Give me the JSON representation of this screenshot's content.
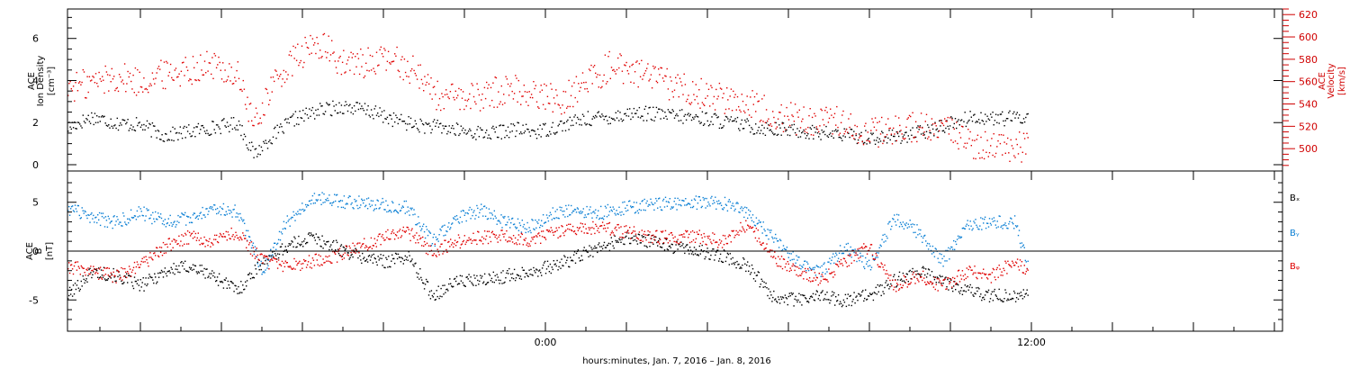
{
  "xlabel": "hours:minutes, Jan.  7, 2016 – Jan.  8, 2016",
  "x_ticks": [
    {
      "hours": 0,
      "label": "0:00"
    },
    {
      "hours": 12,
      "label": "12:00"
    }
  ],
  "chart_data": [
    {
      "type": "scatter",
      "panel": "top",
      "x_unit": "hours relative to Jan. 8, 2016 0:00",
      "xlim": [
        -11.8,
        18.2
      ],
      "left_axis": {
        "label": [
          "ACE",
          "Ion Density"
        ],
        "unit": "[cm⁻³]",
        "ylim": [
          -0.3,
          7.4
        ],
        "ticks": [
          0,
          2,
          4,
          6
        ]
      },
      "right_axis": {
        "label": [
          "ACE",
          "Velocity"
        ],
        "unit": "[km/s]",
        "ylim": [
          480,
          625
        ],
        "ticks": [
          500,
          520,
          540,
          560,
          580,
          600,
          620
        ]
      },
      "series": [
        {
          "axis": "left",
          "color": "#000000",
          "x": [
            -11.8,
            -11.2,
            -10.6,
            -10.0,
            -9.4,
            -8.8,
            -8.2,
            -7.6,
            -7.2,
            -6.8,
            -6.2,
            -5.6,
            -5.0,
            -4.4,
            -3.8,
            -3.2,
            -2.6,
            -2.0,
            -1.4,
            -0.8,
            -0.2,
            0.4,
            1.0,
            1.6,
            2.2,
            2.8,
            3.4,
            4.0,
            4.6,
            5.2,
            5.8,
            6.4,
            7.0,
            7.6,
            8.2,
            8.8,
            9.4,
            10.0,
            10.6,
            11.2,
            11.9
          ],
          "values": [
            1.8,
            2.3,
            2.0,
            1.9,
            1.4,
            1.6,
            1.8,
            2.0,
            0.5,
            1.3,
            2.2,
            2.6,
            2.8,
            2.6,
            2.2,
            1.9,
            1.8,
            1.6,
            1.5,
            1.7,
            1.6,
            1.9,
            2.2,
            2.3,
            2.5,
            2.4,
            2.3,
            2.2,
            2.0,
            1.8,
            1.7,
            1.6,
            1.5,
            1.4,
            1.3,
            1.4,
            1.6,
            2.0,
            2.3,
            2.2,
            2.3
          ]
        },
        {
          "axis": "right",
          "color": "#e00000",
          "x": [
            -11.8,
            -11.2,
            -10.6,
            -10.0,
            -9.4,
            -8.8,
            -8.2,
            -7.6,
            -7.2,
            -6.8,
            -6.2,
            -5.6,
            -5.0,
            -4.4,
            -3.8,
            -3.2,
            -2.6,
            -2.0,
            -1.4,
            -0.8,
            -0.2,
            0.4,
            1.0,
            1.6,
            2.2,
            2.8,
            3.4,
            4.0,
            4.6,
            5.2,
            5.8,
            6.4,
            7.0,
            7.6,
            8.2,
            8.8,
            9.4,
            10.0,
            10.6,
            11.2,
            11.9
          ],
          "values": [
            555,
            560,
            565,
            560,
            568,
            572,
            575,
            565,
            520,
            555,
            580,
            595,
            575,
            578,
            580,
            570,
            545,
            545,
            550,
            555,
            548,
            545,
            560,
            575,
            570,
            560,
            555,
            548,
            545,
            540,
            530,
            525,
            528,
            520,
            515,
            520,
            518,
            515,
            505,
            500,
            502
          ]
        }
      ]
    },
    {
      "type": "scatter",
      "panel": "bottom",
      "x_unit": "hours relative to Jan. 8, 2016 0:00",
      "xlim": [
        -11.8,
        18.2
      ],
      "ylabel": [
        "ACE",
        "B",
        "[nT]"
      ],
      "ylim": [
        -8.2,
        8.2
      ],
      "ticks": [
        -5,
        0,
        5
      ],
      "zero_line": true,
      "legend": [
        "Bₓ",
        "Bᵧ",
        "Bᵩ"
      ],
      "legend_position": "right",
      "series": [
        {
          "name_index": 0,
          "color": "#000000",
          "x": [
            -11.8,
            -11.2,
            -10.6,
            -10.0,
            -9.4,
            -8.8,
            -8.2,
            -7.6,
            -7.0,
            -6.4,
            -5.8,
            -5.2,
            -4.6,
            -4.0,
            -3.4,
            -2.8,
            -2.2,
            -1.6,
            -1.0,
            -0.4,
            0.2,
            0.8,
            1.4,
            2.0,
            2.6,
            3.2,
            3.8,
            4.4,
            5.0,
            5.6,
            6.2,
            6.8,
            7.4,
            8.0,
            8.6,
            9.2,
            9.8,
            10.4,
            11.0,
            11.6,
            11.9
          ],
          "values": [
            -4.5,
            -2.0,
            -2.5,
            -3.5,
            -2.0,
            -1.5,
            -2.5,
            -4.0,
            -1.0,
            0.5,
            1.5,
            0.5,
            -0.5,
            -1.0,
            -0.5,
            -4.5,
            -3.0,
            -3.0,
            -2.5,
            -2.0,
            -1.5,
            -0.5,
            0.5,
            1.5,
            1.0,
            0.5,
            0.0,
            -0.5,
            -1.5,
            -4.5,
            -5.0,
            -4.5,
            -5.0,
            -4.5,
            -3.0,
            -2.0,
            -3.0,
            -4.0,
            -4.5,
            -4.5,
            -4.0
          ]
        },
        {
          "name_index": 1,
          "color": "#0a7fd4",
          "x": [
            -11.8,
            -11.2,
            -10.6,
            -10.0,
            -9.4,
            -8.8,
            -8.2,
            -7.6,
            -7.0,
            -6.4,
            -5.8,
            -5.2,
            -4.6,
            -4.0,
            -3.4,
            -2.8,
            -2.2,
            -1.6,
            -1.0,
            -0.4,
            0.2,
            0.8,
            1.4,
            2.0,
            2.6,
            3.2,
            3.8,
            4.4,
            5.0,
            5.6,
            6.2,
            6.8,
            7.4,
            8.0,
            8.6,
            9.2,
            9.8,
            10.4,
            11.0,
            11.6,
            11.9
          ],
          "values": [
            4.5,
            3.5,
            3.0,
            4.0,
            3.0,
            3.5,
            4.5,
            4.0,
            -2.0,
            3.0,
            5.5,
            5.2,
            5.0,
            4.8,
            4.5,
            1.0,
            3.5,
            4.2,
            3.0,
            2.5,
            4.0,
            4.2,
            4.0,
            4.5,
            4.8,
            5.0,
            5.0,
            5.0,
            4.0,
            1.5,
            -1.0,
            -2.0,
            0.5,
            -1.5,
            3.5,
            2.0,
            -1.0,
            2.5,
            3.0,
            3.0,
            -1.5
          ]
        },
        {
          "name_index": 2,
          "color": "#e00000",
          "x": [
            -11.8,
            -11.2,
            -10.6,
            -10.0,
            -9.4,
            -8.8,
            -8.2,
            -7.6,
            -7.0,
            -6.4,
            -5.8,
            -5.2,
            -4.6,
            -4.0,
            -3.4,
            -2.8,
            -2.2,
            -1.6,
            -1.0,
            -0.4,
            0.2,
            0.8,
            1.4,
            2.0,
            2.6,
            3.2,
            3.8,
            4.4,
            5.0,
            5.6,
            6.2,
            6.8,
            7.4,
            8.0,
            8.6,
            9.2,
            9.8,
            10.4,
            11.0,
            11.6,
            11.9
          ],
          "values": [
            -1.5,
            -2.0,
            -2.5,
            -1.5,
            0.5,
            1.5,
            1.0,
            2.0,
            -1.0,
            -1.5,
            -1.0,
            -0.5,
            0.5,
            1.5,
            2.0,
            0.0,
            1.0,
            1.5,
            1.5,
            1.0,
            2.0,
            2.5,
            2.5,
            2.0,
            1.5,
            1.5,
            1.5,
            1.0,
            3.0,
            -0.5,
            -2.0,
            -3.0,
            -1.0,
            0.5,
            -3.5,
            -2.5,
            -3.5,
            -2.0,
            -2.5,
            -1.0,
            -2.0
          ]
        }
      ]
    }
  ]
}
